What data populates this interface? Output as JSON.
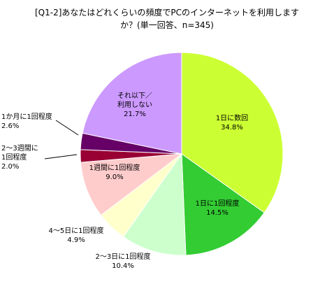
{
  "chart_data": {
    "type": "pie",
    "title": {
      "line1": "[Q1-2]あなたはどれくらいの頻度でPCのインターネットを利用します",
      "line2": "か？(単一回答、n=345)"
    },
    "slices": [
      {
        "label": "1日に数回",
        "value": 34.8,
        "display": "34.8%",
        "color": "#ccff33"
      },
      {
        "label": "1日に1回程度",
        "value": 14.5,
        "display": "14.5%",
        "color": "#33cc33"
      },
      {
        "label": "2～3日に1回程度",
        "value": 10.4,
        "display": "10.4%",
        "color": "#ccffcc"
      },
      {
        "label": "4～5日に1回程度",
        "value": 4.9,
        "display": "4.9%",
        "color": "#ffffcc"
      },
      {
        "label": "1週間に1回程度",
        "value": 9.0,
        "display": "9.0%",
        "color": "#ffcccc"
      },
      {
        "label": "2～3週間に1回程度",
        "value": 2.0,
        "display": "2.0%",
        "color": "#990033"
      },
      {
        "label": "1か月に1回程度",
        "value": 2.6,
        "display": "2.6%",
        "color": "#660066"
      },
      {
        "label": "それ以下／利用しない",
        "value": 21.7,
        "display": "21.7%",
        "color": "#cc99ff"
      }
    ]
  }
}
